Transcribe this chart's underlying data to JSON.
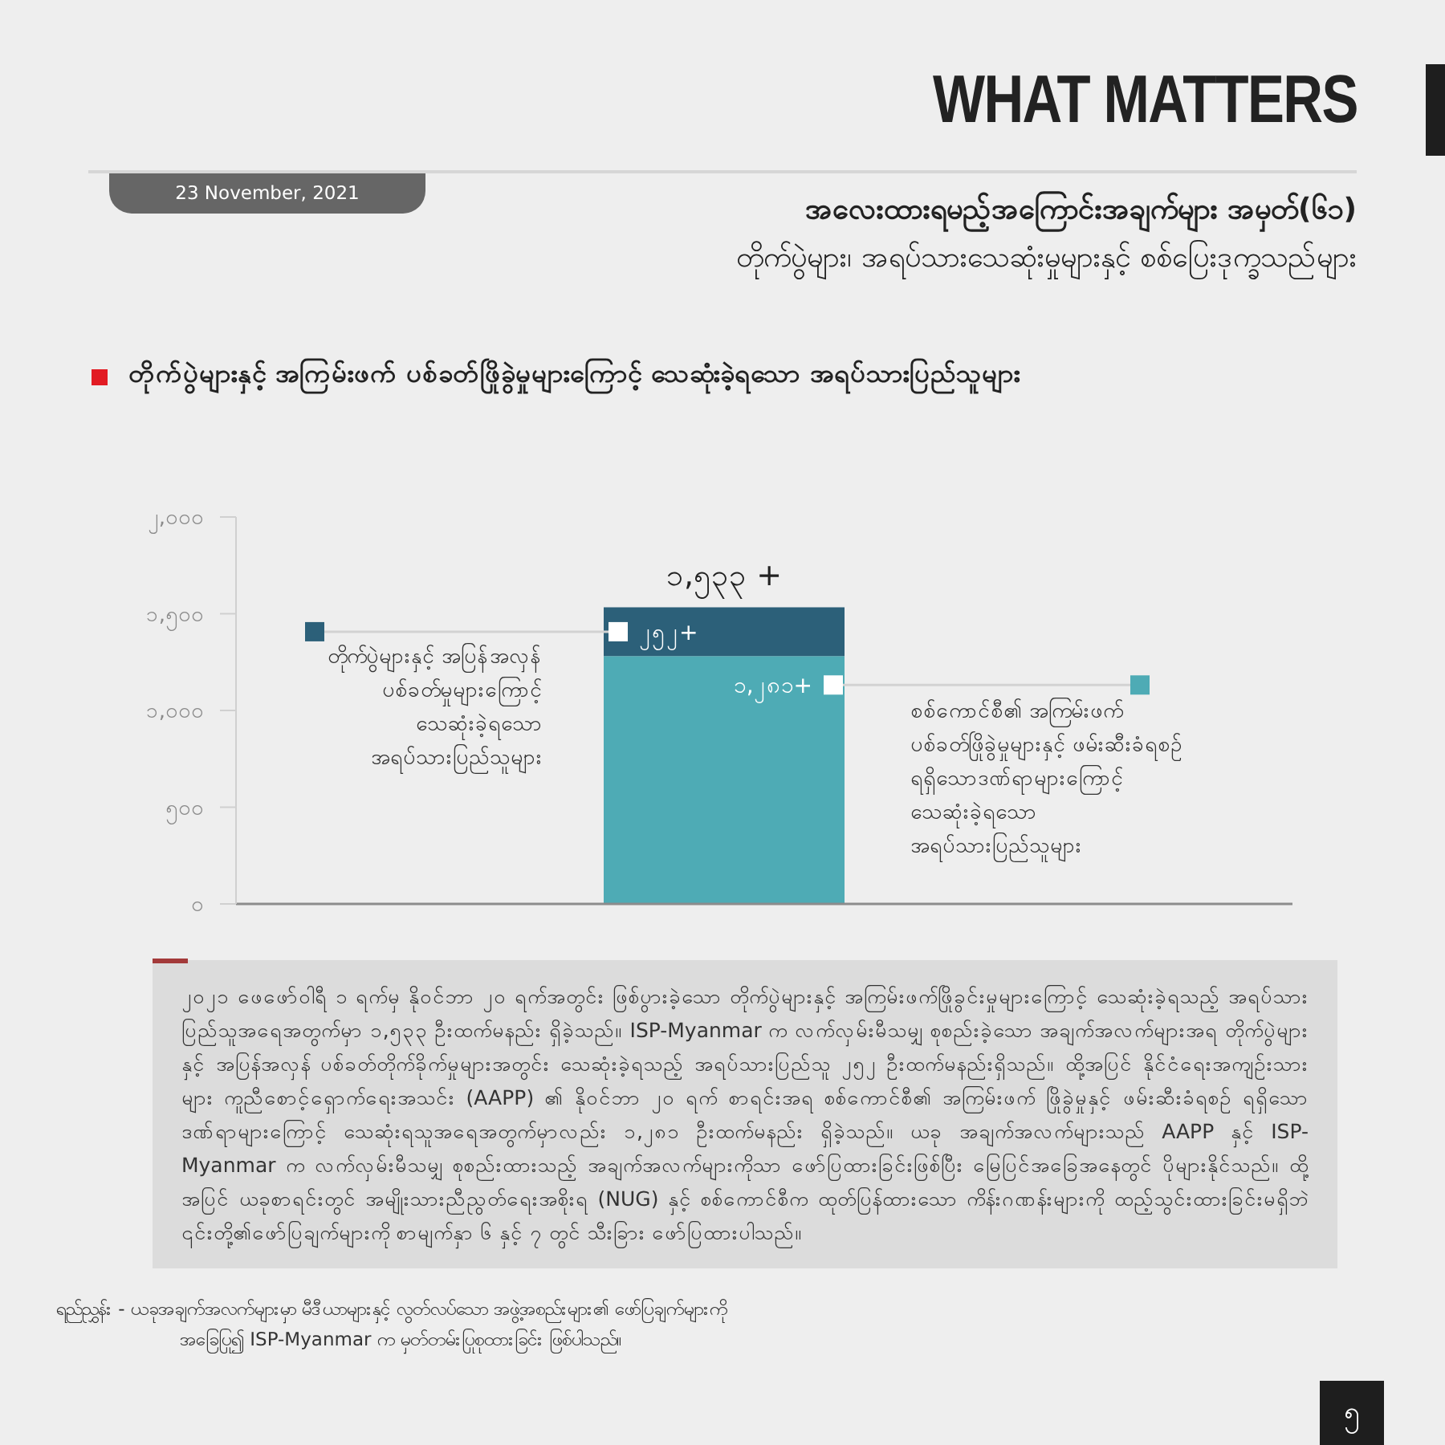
{
  "chart_data": {
    "type": "bar",
    "title": "တိုက်ပွဲများနှင့် အကြမ်းဖက် ပစ်ခတ်ဖြိုခွဲမှုများကြောင့် သေဆုံးခဲ့ရသော အရပ်သားပြည်သူများ",
    "annotations": [
      "WHAT MATTERS",
      "23 November, 2021",
      "အလေးထားရမည့်အကြောင်းအချက်များ အမှတ်(၆၁)",
      "တိုက်ပွဲများ၊ အရပ်သားသေဆုံးမှုများနှင့် စစ်ပြေးဒုက္ခသည်များ",
      "၂၀၂၁ ဖေဖော်ဝါရီ ၁ ရက်မှ နိုဝင်ဘာ ၂၀ ရက်အတွင်း ဖြစ်ပွားခဲ့သော တိုက်ပွဲများနှင့် အကြမ်းဖက်ဖြိုခွင်းမှုများကြောင့် သေဆုံးခဲ့ရသည့် အရပ်သားပြည်သူအရေအတွက်မှာ ၁,၅၃၃ ဦးထက်မနည်း ရှိခဲ့သည်။ ISP-Myanmar က လက်လှမ်းမီသမျှ စုစည်းခဲ့သော အချက်အလက်များအရ တိုက်ပွဲများနှင့် အပြန်အလှန် ပစ်ခတ်တိုက်ခိုက်မှုများအတွင်း သေဆုံးခဲ့ရသည့် အရပ်သားပြည်သူ ၂၅၂ ဦးထက်မနည်းရှိသည်။ ထို့အပြင် နိုင်ငံရေးအကျဉ်းသားများ ကူညီစောင့်ရှောက်ရေးအသင်း (AAPP) ၏ နိုဝင်ဘာ ၂၀ ရက် စာရင်းအရ စစ်ကောင်စီ၏ အကြမ်းဖက် ဖြိုခွဲမှုနှင့် ဖမ်းဆီးခံရစဉ် ရရှိသောဒဏ်ရာများကြောင့် သေဆုံးရသူအရေအတွက်မှာလည်း ၁,၂၈၁ ဦးထက်မနည်း ရှိခဲ့သည်။ ယခု အချက်အလက်များသည် AAPP နှင့် ISP-Myanmar က လက်လှမ်းမီသမျှ စုစည်းထားသည့် အချက်အလက်များကိုသာ ဖော်ပြထားခြင်းဖြစ်ပြီး မြေပြင်အခြေအနေတွင် ပိုများနိုင်သည်။ ထို့အပြင် ယခုစာရင်းတွင် အမျိုးသားညီညွတ်ရေးအစိုးရ (NUG) နှင့် စစ်ကောင်စီက ထုတ်ပြန်ထားသော ကိန်းဂဏန်းများကို ထည့်သွင်းထားခြင်းမရှိဘဲ ၎င်းတို့၏ဖော်ပြချက်များကို စာမျက်နှာ ၆ နှင့် ၇ တွင် သီးခြား ဖော်ပြထားပါသည်။",
      "ရည်ညွှန်း - ယခုအချက်အလက်များမှာ မီဒီယာများနှင့် လွတ်လပ်သော အဖွဲ့အစည်းများ၏ ဖော်ပြချက်များကို အခြေပြု၍ ISP-Myanmar က မှတ်တမ်းပြုစုထားခြင်း ဖြစ်ပါသည်။",
      "၅"
    ],
    "categories": [
      null
    ],
    "series": [
      {
        "name": "စစ်ကောင်စီ၏ အကြမ်းဖက် ပစ်ခတ်ဖြိုခွဲမှုများနှင့် ဖမ်းဆီးခံရစဉ် ရရှိသောဒဏ်ရာများကြောင့် သေဆုံးခဲ့ရသော အရပ်သားပြည်သူများ",
        "color": "#4eabb5",
        "values": [
          1281
        ],
        "value_labels": [
          "၁,၂၈၁+"
        ]
      },
      {
        "name": "တိုက်ပွဲများနှင့် အပြန်အလှန် ပစ်ခတ်မှုများကြောင့် သေဆုံးခဲ့ရသော အရပ်သားပြည်သူများ",
        "color": "#2c6079",
        "values": [
          252
        ],
        "value_labels": [
          "၂၅၂+"
        ]
      }
    ],
    "stacked": true,
    "totals": [
      "၁,၅၃၃ +"
    ],
    "legend": "center",
    "ylim": [
      0,
      2000
    ],
    "yticks": [
      {
        "value": 0,
        "label": "၀"
      },
      {
        "value": 500,
        "label": "၅၀၀"
      },
      {
        "value": 1000,
        "label": "၁,၀၀၀"
      },
      {
        "value": 1500,
        "label": "၁,၅၀၀"
      },
      {
        "value": 2000,
        "label": "၂,၀၀၀"
      }
    ],
    "tick_labels": "y"
  }
}
